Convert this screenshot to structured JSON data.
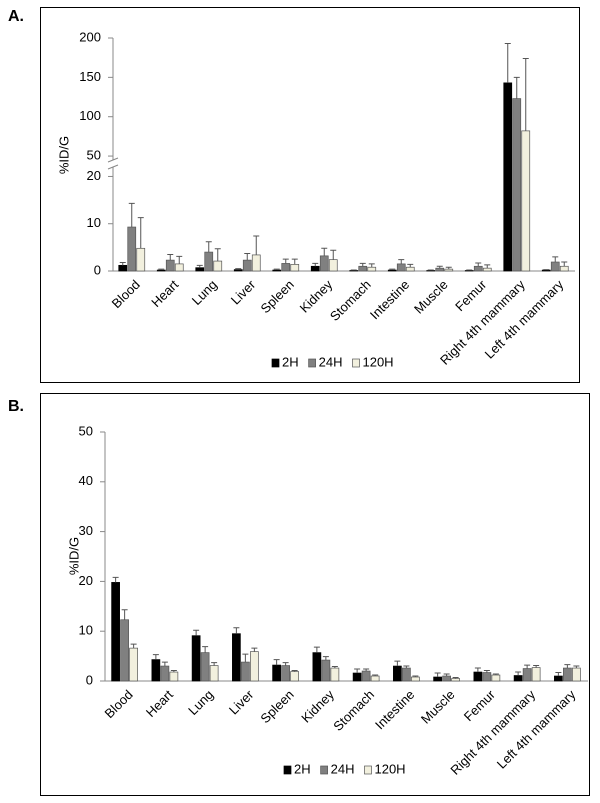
{
  "chart_data": [
    {
      "type": "bar",
      "label": "A.",
      "ylabel": "%ID/G",
      "categories": [
        "Blood",
        "Heart",
        "Lung",
        "Liver",
        "Spleen",
        "Kidney",
        "Stomach",
        "Intestine",
        "Muscle",
        "Femur",
        "Right 4th mammary",
        "Left 4th mammary"
      ],
      "series": [
        {
          "name": "2H",
          "color": "#000000",
          "values": [
            1.2,
            0.2,
            0.7,
            0.3,
            0.2,
            1.0,
            0.1,
            0.2,
            0.1,
            0.1,
            143,
            0.2
          ],
          "errors": [
            0.6,
            0.2,
            0.5,
            0.2,
            0.2,
            0.6,
            0.1,
            0.2,
            0.1,
            0.1,
            50,
            0.1
          ]
        },
        {
          "name": "24H",
          "color": "#808080",
          "values": [
            9.3,
            2.3,
            4.0,
            2.3,
            1.6,
            3.2,
            1.0,
            1.5,
            0.6,
            1.0,
            123,
            1.9
          ],
          "errors": [
            5,
            1.2,
            2.2,
            1.4,
            0.9,
            1.6,
            0.6,
            0.9,
            0.4,
            0.7,
            27,
            1.1
          ]
        },
        {
          "name": "120H",
          "color": "#f2f0de",
          "values": [
            4.8,
            1.5,
            2.1,
            3.4,
            1.4,
            2.4,
            0.8,
            0.8,
            0.4,
            0.6,
            82,
            1.0
          ],
          "errors": [
            6.5,
            1.6,
            2.6,
            4.0,
            1.1,
            2.0,
            0.7,
            0.6,
            0.4,
            0.7,
            92,
            0.9
          ]
        }
      ],
      "ylim_segments": [
        [
          0,
          22
        ],
        [
          45,
          200
        ]
      ],
      "yticks": [
        0,
        10,
        20,
        50,
        100,
        150,
        200
      ],
      "grid": false,
      "legend": "bottom"
    },
    {
      "type": "bar",
      "label": "B.",
      "ylabel": "%ID/G",
      "categories": [
        "Blood",
        "Heart",
        "Lung",
        "Liver",
        "Spleen",
        "Kidney",
        "Stomach",
        "Intestine",
        "Muscle",
        "Femur",
        "Right 4th mammary",
        "Left 4th mammary"
      ],
      "series": [
        {
          "name": "2H",
          "color": "#000000",
          "values": [
            19.8,
            4.3,
            9.1,
            9.5,
            3.2,
            5.7,
            1.6,
            3.0,
            0.8,
            1.8,
            1.1,
            1.0
          ],
          "errors": [
            1.0,
            1.0,
            1.1,
            1.2,
            1.1,
            1.1,
            0.8,
            1.0,
            0.8,
            0.8,
            0.7,
            0.7
          ]
        },
        {
          "name": "24H",
          "color": "#808080",
          "values": [
            12.3,
            3.0,
            5.7,
            3.8,
            3.1,
            4.2,
            2.0,
            2.6,
            1.0,
            1.7,
            2.5,
            2.6
          ],
          "errors": [
            2.0,
            0.8,
            1.2,
            1.6,
            0.6,
            0.7,
            0.4,
            0.4,
            0.4,
            0.4,
            0.7,
            0.7
          ]
        },
        {
          "name": "120H",
          "color": "#f2f0de",
          "values": [
            6.6,
            1.8,
            3.1,
            5.9,
            1.9,
            2.6,
            1.0,
            0.8,
            0.5,
            1.2,
            2.7,
            2.6
          ],
          "errors": [
            0.8,
            0.3,
            0.6,
            0.7,
            0.2,
            0.3,
            0.2,
            0.2,
            0.2,
            0.2,
            0.4,
            0.4
          ]
        }
      ],
      "ylim": [
        0,
        50
      ],
      "yticks": [
        0,
        10,
        20,
        30,
        40,
        50
      ],
      "grid": false,
      "legend": "bottom"
    }
  ]
}
